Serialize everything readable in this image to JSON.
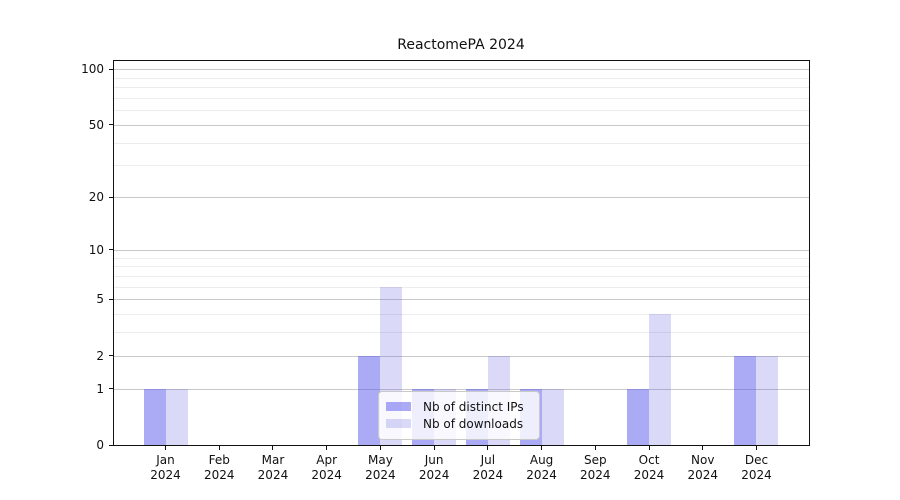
{
  "chart_data": {
    "type": "bar",
    "title": "ReactomePA 2024",
    "x_tick_labels": [
      [
        "Jan",
        "2024"
      ],
      [
        "Feb",
        "2024"
      ],
      [
        "Mar",
        "2024"
      ],
      [
        "Apr",
        "2024"
      ],
      [
        "May",
        "2024"
      ],
      [
        "Jun",
        "2024"
      ],
      [
        "Jul",
        "2024"
      ],
      [
        "Aug",
        "2024"
      ],
      [
        "Sep",
        "2024"
      ],
      [
        "Oct",
        "2024"
      ],
      [
        "Nov",
        "2024"
      ],
      [
        "Dec",
        "2024"
      ]
    ],
    "series": [
      {
        "name": "Nb of distinct IPs",
        "color": "#5555eb",
        "alpha": 0.5,
        "values": [
          1,
          0,
          0,
          0,
          2,
          1,
          1,
          1,
          0,
          1,
          0,
          2
        ]
      },
      {
        "name": "Nb of downloads",
        "color": "#5555e1",
        "alpha": 0.22,
        "values": [
          1,
          0,
          0,
          0,
          6,
          1,
          2,
          1,
          0,
          4,
          0,
          2
        ]
      }
    ],
    "y_axis": {
      "scale": "log1p",
      "label_ticks": [
        0,
        1,
        2,
        5,
        10,
        20,
        50,
        100
      ],
      "minor_gridlines": [
        3,
        4,
        6,
        7,
        8,
        9,
        30,
        40,
        60,
        70,
        80,
        90
      ],
      "axis_top_value": 112
    },
    "xlabel": "",
    "ylabel": "",
    "legend_position": "lower center",
    "grid": true,
    "colors": {
      "major_grid": "#c9c9c9",
      "minor_grid": "#ececec",
      "spine": "#111111",
      "text": "#111111"
    }
  }
}
